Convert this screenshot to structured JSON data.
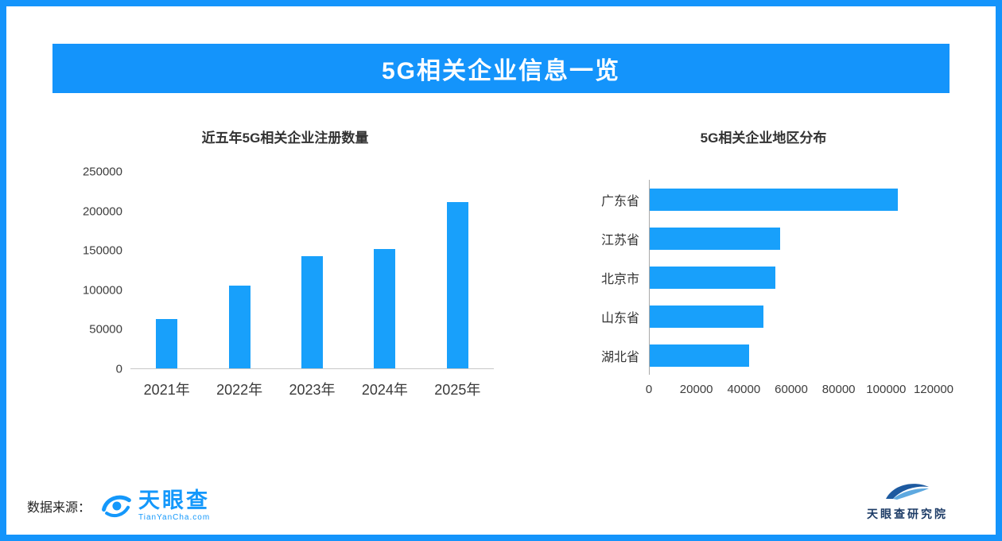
{
  "page": {
    "border_color": "#1494fb",
    "background": "#ffffff"
  },
  "header": {
    "title": "5G相关企业信息一览",
    "bg_color": "#1494fb",
    "text_color": "#ffffff"
  },
  "chart_data": [
    {
      "type": "bar",
      "title": "近五年5G相关企业注册数量",
      "categories": [
        "2021年",
        "2022年",
        "2023年",
        "2024年",
        "2025年"
      ],
      "values": [
        63000,
        105000,
        143000,
        152000,
        212000
      ],
      "ylabel": "",
      "xlabel": "",
      "ylim": [
        0,
        250000
      ],
      "yticks": [
        0,
        50000,
        100000,
        150000,
        200000,
        250000
      ],
      "grid": false,
      "legend": "none",
      "bar_color": "#18a0fb"
    },
    {
      "type": "bar-horizontal",
      "title": "5G相关企业地区分布",
      "categories": [
        "广东省",
        "江苏省",
        "北京市",
        "山东省",
        "湖北省"
      ],
      "values": [
        105000,
        55000,
        53000,
        48000,
        42000
      ],
      "ylabel": "",
      "xlabel": "",
      "xlim": [
        0,
        120000
      ],
      "xticks": [
        0,
        20000,
        40000,
        60000,
        80000,
        100000,
        120000
      ],
      "grid": false,
      "legend": "none",
      "bar_color": "#18a0fb"
    }
  ],
  "footer": {
    "source_label": "数据来源：",
    "tianyancha_name": "天眼查",
    "tianyancha_sub": "TianYanCha.com",
    "tianyancha_color": "#1498fb",
    "research_name": "天眼查研究院",
    "research_color": "#1c3b66"
  }
}
